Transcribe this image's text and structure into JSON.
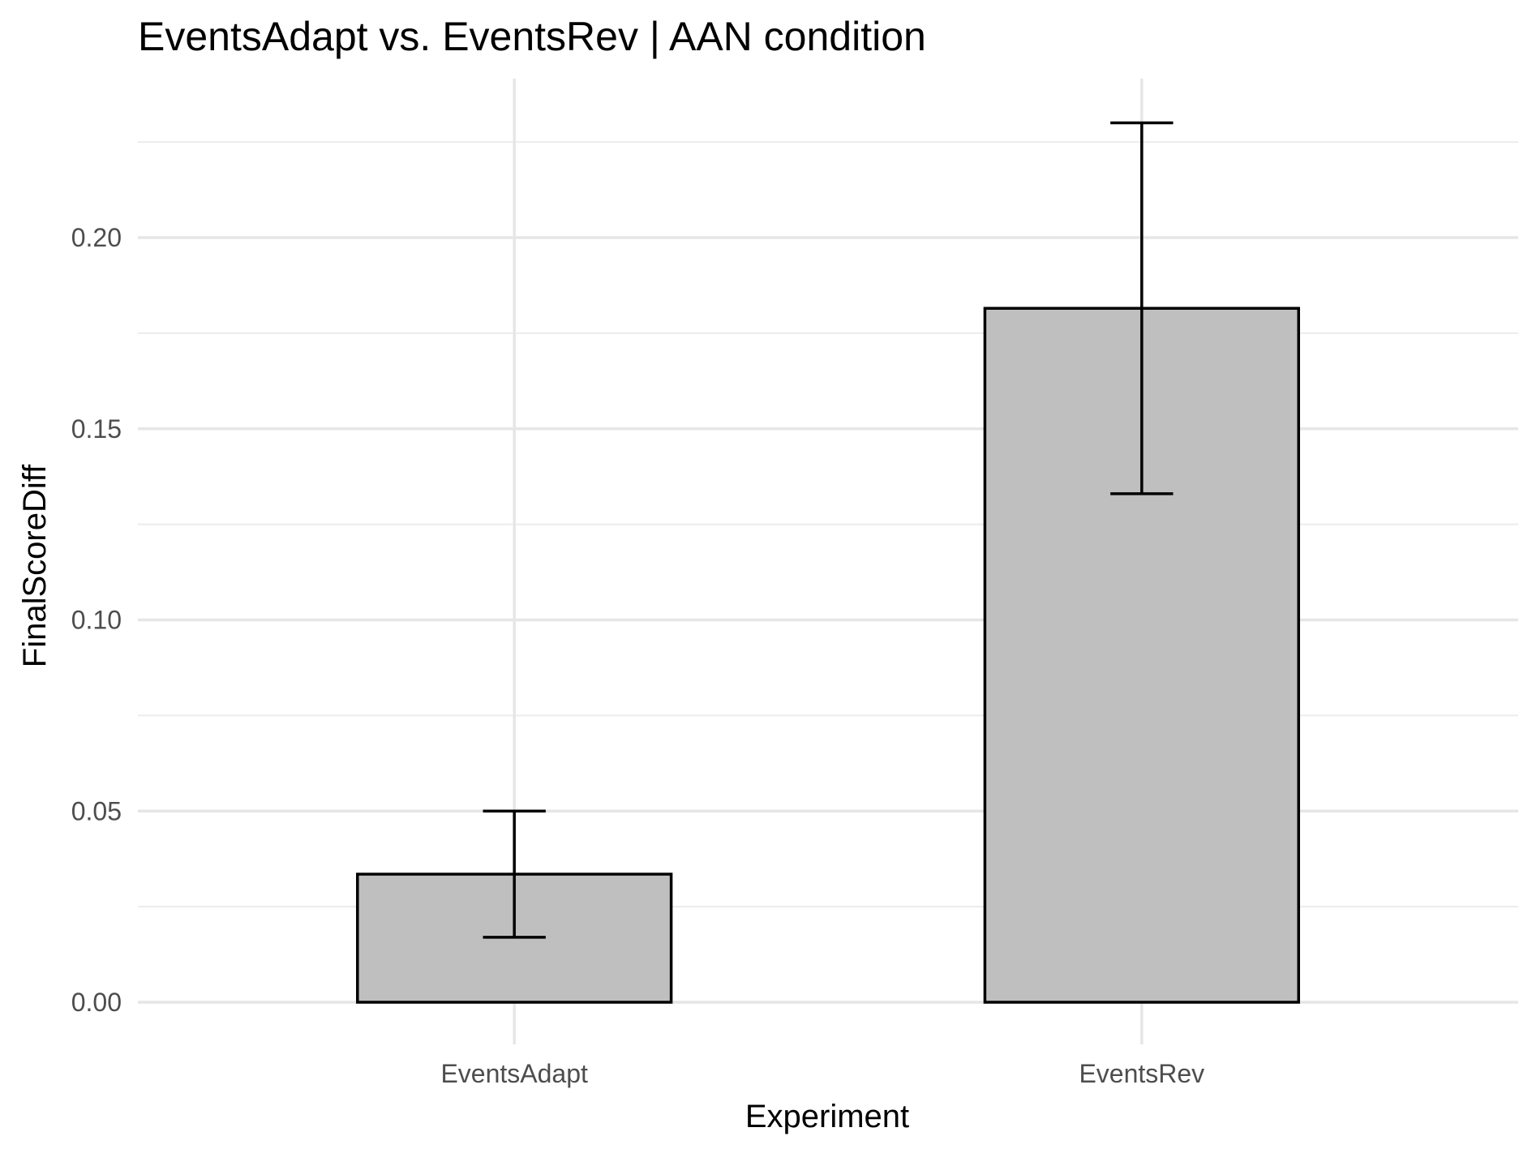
{
  "chart_data": {
    "type": "bar",
    "title": "EventsAdapt vs. EventsRev | AAN condition",
    "xlabel": "Experiment",
    "ylabel": "FinalScoreDiff",
    "categories": [
      "EventsAdapt",
      "EventsRev"
    ],
    "values": [
      0.0335,
      0.1815
    ],
    "error_low": [
      0.017,
      0.133
    ],
    "error_high": [
      0.05,
      0.23
    ],
    "ylim": [
      -0.011,
      0.242
    ],
    "yticks": [
      0.0,
      0.05,
      0.1,
      0.15,
      0.2
    ],
    "ytick_labels": [
      "0.00",
      "0.05",
      "0.10",
      "0.15",
      "0.20"
    ],
    "grid": true,
    "bar_color": "#bfbfbf",
    "bar_edge_color": "#000000"
  }
}
